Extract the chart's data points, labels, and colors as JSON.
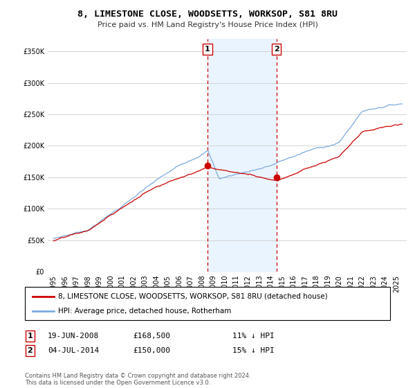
{
  "title": "8, LIMESTONE CLOSE, WOODSETTS, WORKSOP, S81 8RU",
  "subtitle": "Price paid vs. HM Land Registry's House Price Index (HPI)",
  "property_label": "8, LIMESTONE CLOSE, WOODSETTS, WORKSOP, S81 8RU (detached house)",
  "hpi_label": "HPI: Average price, detached house, Rotherham",
  "transaction1_date": "19-JUN-2008",
  "transaction1_price": 168500,
  "transaction1_pct": "11% ↓ HPI",
  "transaction2_date": "04-JUL-2014",
  "transaction2_price": 150000,
  "transaction2_pct": "15% ↓ HPI",
  "footnote": "Contains HM Land Registry data © Crown copyright and database right 2024.\nThis data is licensed under the Open Government Licence v3.0.",
  "hpi_color": "#7aaadd",
  "property_color": "#cc0000",
  "shade_color": "#ddeeff",
  "transaction_line_color": "#cc0000",
  "ylim": [
    0,
    370000
  ],
  "yticks": [
    0,
    50000,
    100000,
    150000,
    200000,
    250000,
    300000,
    350000
  ]
}
